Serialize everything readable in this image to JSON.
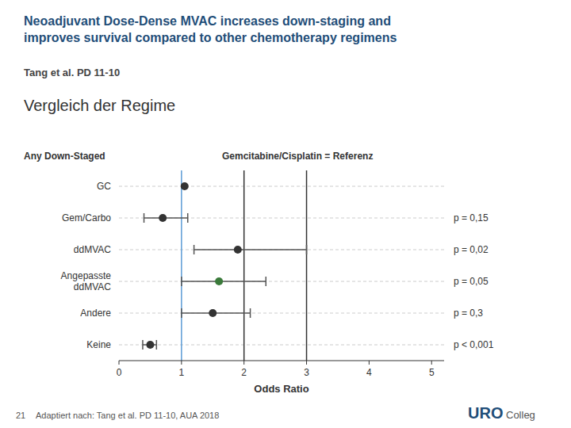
{
  "chart_data": {
    "type": "forest",
    "orientation": "horizontal",
    "title": "Neoadjuvant Dose-Dense MVAC increases down-staging and\nimproves survival compared to other chemotherapy regimens",
    "subtitle": "Vergleich der Regime",
    "xlabel": "Odds Ratio",
    "annotations": [
      "Tang et al. PD 11-10",
      "Any Down-Staged",
      "Gemcitabine/Cisplatin = Referenz",
      "21",
      "Adaptiert nach: Tang et al. PD 11-10, AUA 2018",
      "URO",
      "Colleg"
    ],
    "categories": [
      "GC",
      "Gem/Carbo",
      "ddMVAC",
      "Angepasste\nddMVAC",
      "Andere",
      "Keine"
    ],
    "values": [
      1.05,
      0.7,
      1.9,
      1.6,
      1.5,
      0.5
    ],
    "ci_low": [
      null,
      0.4,
      1.2,
      1.0,
      1.0,
      0.38
    ],
    "ci_high": [
      null,
      1.1,
      3.0,
      2.35,
      2.1,
      0.6
    ],
    "p_values": [
      null,
      "p = 0,15",
      "p = 0,02",
      "p = 0,05",
      "p = 0,3",
      "p < 0,001"
    ],
    "colors": [
      "#333333",
      "#333333",
      "#333333",
      "#3a7a3a",
      "#333333",
      "#333333"
    ],
    "marker": "circle",
    "ref_lines": [
      {
        "value": 1.0,
        "color": "#5b9bd5"
      },
      {
        "value": 2.0,
        "color": "#333333"
      },
      {
        "value": 3.0,
        "color": "#333333"
      }
    ],
    "xlim": [
      0,
      5.2
    ],
    "xticks": [
      0,
      1,
      2,
      3,
      4,
      5
    ],
    "grid": true
  }
}
